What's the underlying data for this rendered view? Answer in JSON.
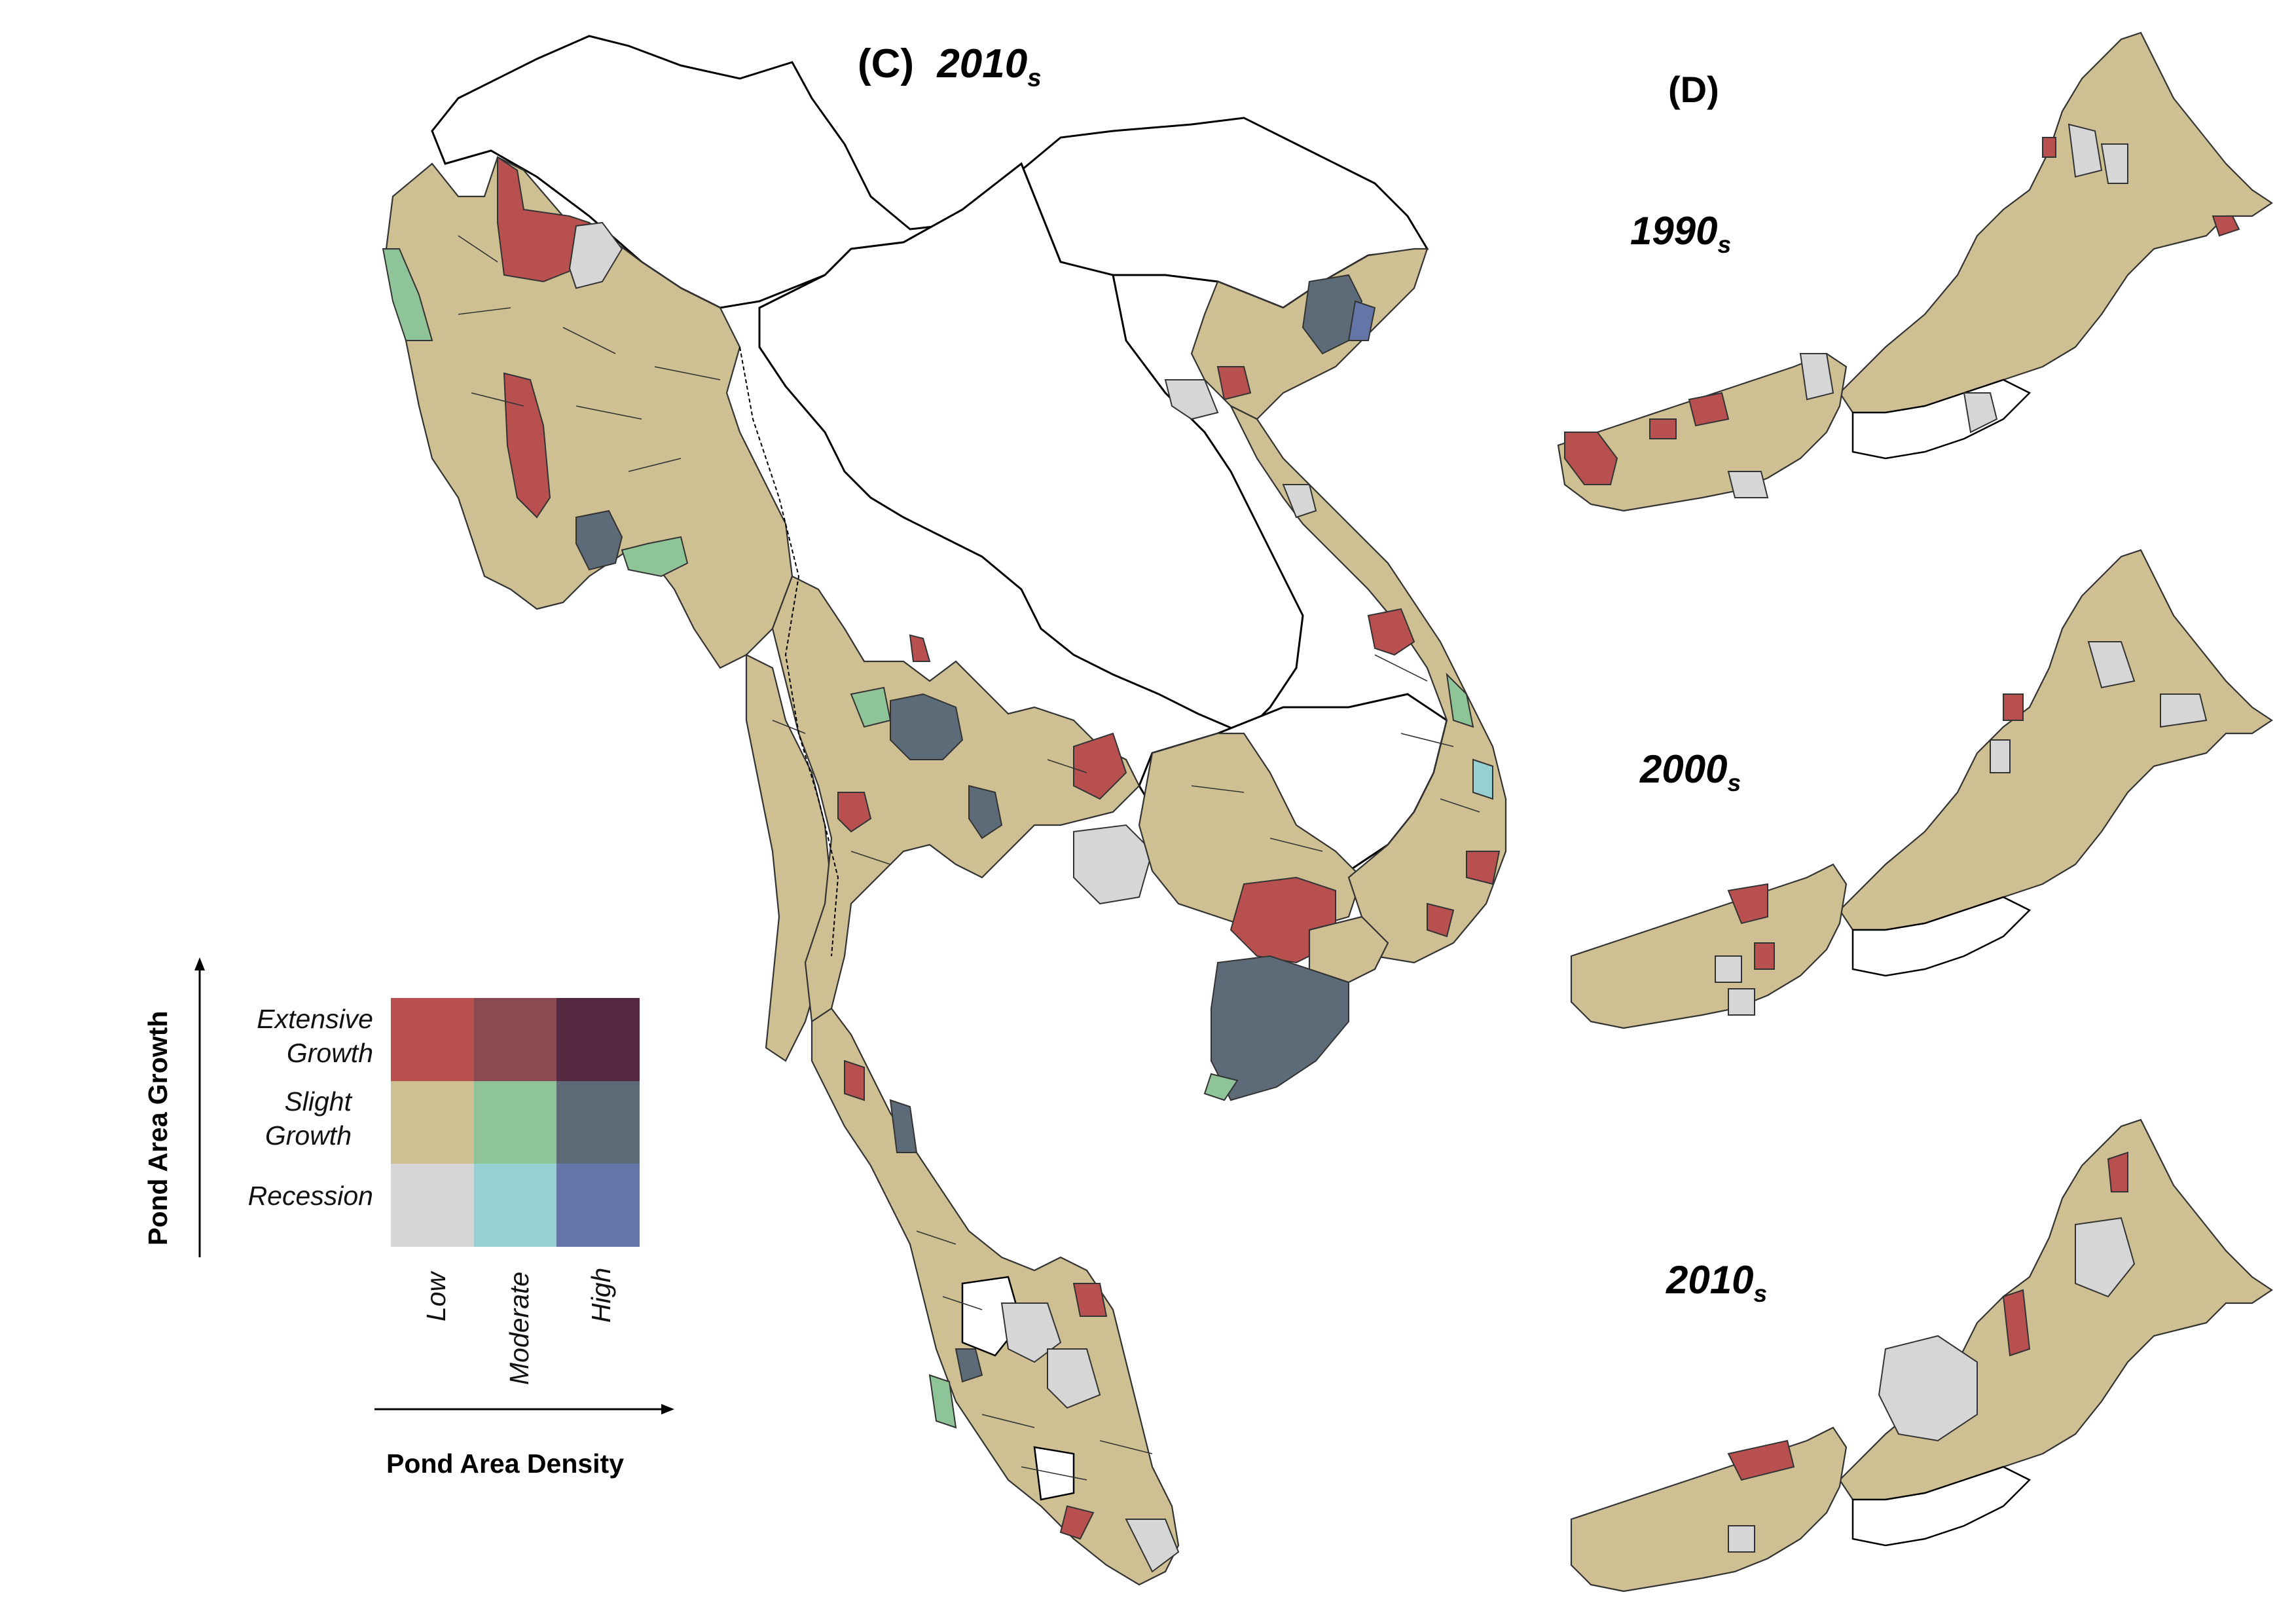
{
  "panel_c": {
    "label": "(C)",
    "decade": "2010",
    "decade_sub": "s"
  },
  "panel_d": {
    "label": "(D)",
    "maps": [
      {
        "decade": "1990",
        "sub": "s"
      },
      {
        "decade": "2000",
        "sub": "s"
      },
      {
        "decade": "2010",
        "sub": "s"
      }
    ]
  },
  "legend": {
    "y_title": "Pond Area Growth",
    "x_title": "Pond Area Density",
    "rows": [
      {
        "label_line1": "Extensive",
        "label_line2": "Growth"
      },
      {
        "label_line1": "Slight",
        "label_line2": "Growth"
      },
      {
        "label_line1": "Recession",
        "label_line2": ""
      }
    ],
    "columns": [
      "Low",
      "Moderate",
      "High"
    ],
    "colors": [
      [
        "#b85050",
        "#8a4a50",
        "#552a40"
      ],
      [
        "#cec092",
        "#8fc499",
        "#5d6a78"
      ],
      [
        "#d6d6d6",
        "#97d0d0",
        "#6476a8"
      ]
    ]
  },
  "map_colors": {
    "outline_country": "#000000",
    "base_fill": "#cec092",
    "no_data": "#ffffff"
  }
}
